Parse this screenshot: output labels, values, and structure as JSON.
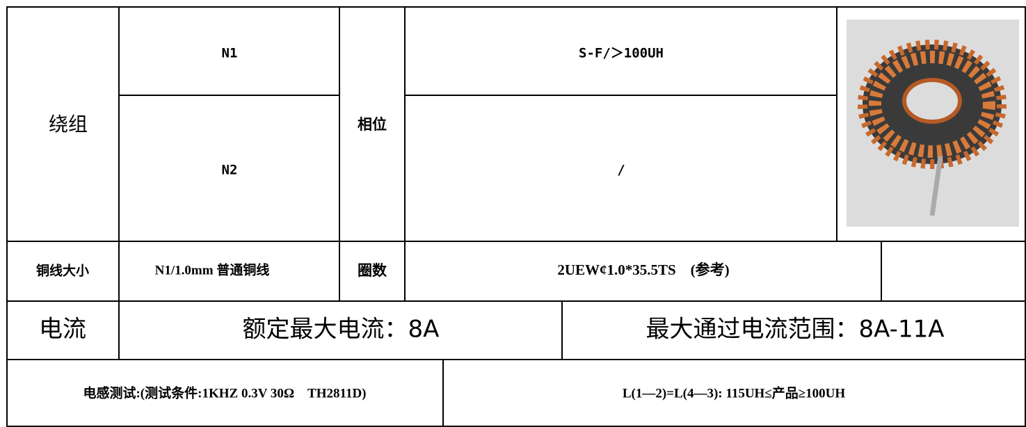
{
  "table": {
    "winding_label": "绕组",
    "n1": "N1",
    "n2": "N2",
    "phase_label": "相位",
    "n1_phase": "S-F/＞100UH",
    "n2_phase": "/",
    "wire_label": "铜线大小",
    "wire": "N1/1.0mm 普通铜线",
    "turns_label": "圈数",
    "turns": "2UEW¢1.0*35.5TS　(参考)",
    "current_label": "电流",
    "rated_current": "额定最大电流：8A",
    "current_range": "最大通过电流范围：8A-11A",
    "test_condition": "电感测试:(测试条件:1KHZ 0.3V 30Ω　TH2811D)",
    "test_result": "L(1—2)=L(4—3): 115UH≤产品≥100UH"
  }
}
